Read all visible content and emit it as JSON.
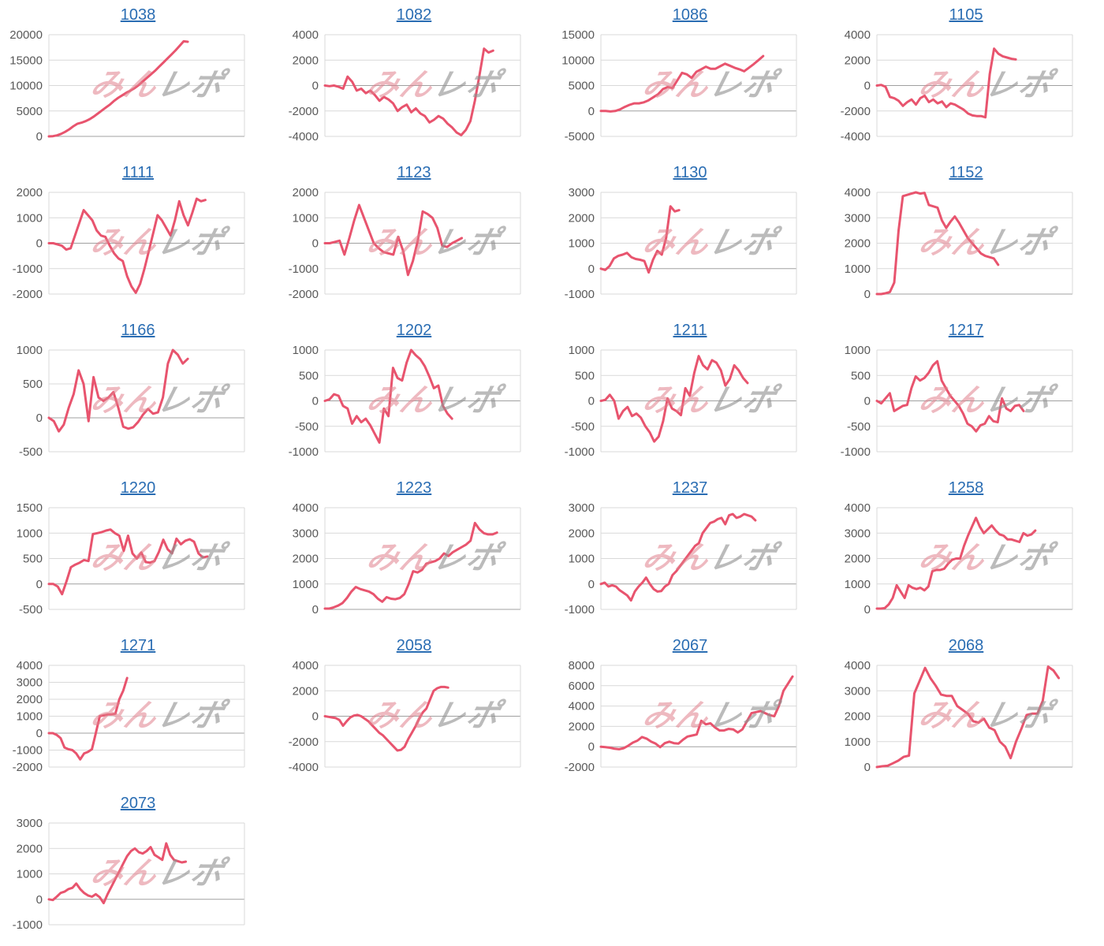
{
  "page": {
    "background": "#ffffff"
  },
  "watermark": {
    "left_text": "みん",
    "right_text": "レポ",
    "left_color": "rgba(224,128,140,0.55)",
    "right_color": "rgba(145,145,145,0.62)"
  },
  "chart_style": {
    "line_color": "#e8546e",
    "grid_color": "#d9d9d9",
    "zero_line_color": "#a0a0a0",
    "tick_color": "#595959",
    "title_color": "#2a6db3"
  },
  "chart_data": [
    {
      "type": "line",
      "title": "1038",
      "ylim": [
        0,
        20000
      ],
      "ystep": 5000,
      "span": 0.71,
      "values": [
        0,
        50,
        200,
        500,
        900,
        1400,
        2000,
        2500,
        2700,
        3000,
        3400,
        3900,
        4500,
        5100,
        5700,
        6300,
        7000,
        7600,
        8100,
        8600,
        9000,
        9500,
        10100,
        10800,
        11500,
        12200,
        12900,
        13700,
        14500,
        15300,
        16100,
        16900,
        17800,
        18700,
        18600
      ]
    },
    {
      "type": "line",
      "title": "1082",
      "ylim": [
        -4000,
        4000
      ],
      "ystep": 2000,
      "span": 0.86,
      "values": [
        0,
        -50,
        0,
        -100,
        -250,
        700,
        300,
        -400,
        -250,
        -600,
        -400,
        -750,
        -1200,
        -900,
        -1100,
        -1400,
        -2000,
        -1700,
        -1500,
        -2100,
        -1800,
        -2200,
        -2400,
        -2900,
        -2700,
        -2400,
        -2600,
        -3000,
        -3300,
        -3700,
        -3900,
        -3500,
        -2800,
        -1200,
        800,
        2900,
        2600,
        2750
      ]
    },
    {
      "type": "line",
      "title": "1086",
      "ylim": [
        -5000,
        15000
      ],
      "ystep": 5000,
      "span": 0.83,
      "values": [
        0,
        0,
        -100,
        0,
        300,
        800,
        1200,
        1500,
        1500,
        1700,
        2100,
        2700,
        3300,
        4300,
        4700,
        4500,
        6000,
        7500,
        7200,
        6500,
        7700,
        8200,
        8700,
        8300,
        8300,
        8800,
        9300,
        8900,
        8500,
        8200,
        7800,
        8500,
        9200,
        10000,
        10800
      ]
    },
    {
      "type": "line",
      "title": "1105",
      "ylim": [
        -4000,
        4000
      ],
      "ystep": 2000,
      "span": 0.71,
      "values": [
        0,
        50,
        -100,
        -900,
        -1000,
        -1200,
        -1600,
        -1300,
        -1100,
        -1500,
        -1000,
        -800,
        -1300,
        -1100,
        -1400,
        -1250,
        -1700,
        -1400,
        -1500,
        -1700,
        -1900,
        -2200,
        -2350,
        -2400,
        -2400,
        -2500,
        900,
        2900,
        2500,
        2300,
        2200,
        2100,
        2050
      ]
    },
    {
      "type": "line",
      "title": "1111",
      "ylim": [
        -2000,
        2000
      ],
      "ystep": 1000,
      "span": 0.8,
      "values": [
        0,
        0,
        -50,
        -100,
        -250,
        -200,
        300,
        800,
        1300,
        1100,
        900,
        500,
        300,
        250,
        -100,
        -400,
        -600,
        -700,
        -1300,
        -1700,
        -1950,
        -1600,
        -1000,
        -300,
        400,
        1100,
        900,
        600,
        300,
        900,
        1650,
        1100,
        700,
        1200,
        1750,
        1650,
        1700
      ]
    },
    {
      "type": "line",
      "title": "1123",
      "ylim": [
        -2000,
        2000
      ],
      "ystep": 1000,
      "span": 0.7,
      "values": [
        0,
        0,
        50,
        100,
        -450,
        200,
        900,
        1500,
        1000,
        500,
        0,
        -200,
        -350,
        -400,
        -450,
        250,
        -300,
        -1250,
        -700,
        100,
        1250,
        1150,
        1000,
        600,
        -100,
        -150,
        0,
        100,
        200
      ]
    },
    {
      "type": "line",
      "title": "1130",
      "ylim": [
        -1000,
        3000
      ],
      "ystep": 1000,
      "span": 0.4,
      "values": [
        0,
        -50,
        100,
        400,
        500,
        550,
        620,
        450,
        380,
        350,
        300,
        -150,
        350,
        700,
        550,
        1200,
        2450,
        2250,
        2300
      ]
    },
    {
      "type": "line",
      "title": "1152",
      "ylim": [
        0,
        4000
      ],
      "ystep": 1000,
      "span": 0.62,
      "values": [
        0,
        0,
        30,
        80,
        450,
        2500,
        3850,
        3900,
        3950,
        4000,
        3950,
        3980,
        3500,
        3450,
        3400,
        2900,
        2600,
        2850,
        3050,
        2800,
        2500,
        2200,
        2000,
        1800,
        1600,
        1500,
        1450,
        1400,
        1150
      ]
    },
    {
      "type": "line",
      "title": "1166",
      "ylim": [
        -500,
        1000
      ],
      "ystep": 500,
      "span": 0.71,
      "values": [
        0,
        -50,
        -200,
        -100,
        150,
        350,
        700,
        500,
        -50,
        600,
        300,
        250,
        300,
        380,
        150,
        -130,
        -160,
        -140,
        -60,
        50,
        130,
        60,
        80,
        300,
        800,
        1000,
        930,
        800,
        870
      ]
    },
    {
      "type": "line",
      "title": "1202",
      "ylim": [
        -1000,
        1000
      ],
      "ystep": 500,
      "span": 0.65,
      "values": [
        0,
        30,
        130,
        100,
        -100,
        -150,
        -450,
        -300,
        -420,
        -350,
        -480,
        -650,
        -820,
        -150,
        -300,
        650,
        450,
        400,
        750,
        1000,
        900,
        820,
        680,
        480,
        250,
        300,
        -100,
        -250,
        -350
      ]
    },
    {
      "type": "line",
      "title": "1211",
      "ylim": [
        -1000,
        1000
      ],
      "ystep": 500,
      "span": 0.75,
      "values": [
        0,
        20,
        120,
        0,
        -350,
        -200,
        -120,
        -300,
        -250,
        -330,
        -500,
        -620,
        -800,
        -700,
        -400,
        50,
        -150,
        -200,
        -280,
        250,
        100,
        550,
        880,
        700,
        620,
        800,
        750,
        600,
        300,
        430,
        700,
        600,
        450,
        350
      ]
    },
    {
      "type": "line",
      "title": "1217",
      "ylim": [
        -1000,
        1000
      ],
      "ystep": 500,
      "span": 0.75,
      "values": [
        0,
        -50,
        50,
        150,
        -200,
        -150,
        -100,
        -80,
        250,
        480,
        400,
        450,
        550,
        700,
        780,
        400,
        250,
        100,
        0,
        -100,
        -250,
        -450,
        -500,
        -600,
        -480,
        -450,
        -300,
        -400,
        -420,
        50,
        -150,
        -200,
        -100,
        -80,
        -200
      ]
    },
    {
      "type": "line",
      "title": "1220",
      "ylim": [
        -500,
        1500
      ],
      "ystep": 500,
      "span": 0.81,
      "values": [
        0,
        0,
        -50,
        -200,
        50,
        330,
        380,
        420,
        470,
        450,
        980,
        1000,
        1020,
        1050,
        1070,
        1000,
        950,
        650,
        950,
        600,
        500,
        620,
        430,
        420,
        450,
        630,
        870,
        680,
        600,
        890,
        780,
        850,
        880,
        830,
        600,
        520,
        540
      ]
    },
    {
      "type": "line",
      "title": "1223",
      "ylim": [
        0,
        4000
      ],
      "ystep": 1000,
      "span": 0.88,
      "values": [
        30,
        30,
        80,
        150,
        250,
        450,
        700,
        880,
        800,
        750,
        700,
        600,
        420,
        300,
        480,
        420,
        400,
        450,
        600,
        1000,
        1500,
        1450,
        1550,
        1800,
        1850,
        1900,
        2000,
        2200,
        2100,
        2250,
        2350,
        2450,
        2550,
        2700,
        3400,
        3150,
        3000,
        2950,
        2950,
        3020
      ]
    },
    {
      "type": "line",
      "title": "1237",
      "ylim": [
        -1000,
        3000
      ],
      "ystep": 1000,
      "span": 0.79,
      "values": [
        0,
        50,
        -100,
        -50,
        -100,
        -250,
        -350,
        -450,
        -650,
        -300,
        -100,
        50,
        250,
        0,
        -200,
        -300,
        -280,
        -100,
        0,
        350,
        500,
        700,
        900,
        1100,
        1300,
        1500,
        1600,
        2000,
        2200,
        2400,
        2450,
        2550,
        2600,
        2350,
        2700,
        2750,
        2600,
        2650,
        2750,
        2700,
        2650,
        2500
      ]
    },
    {
      "type": "line",
      "title": "1258",
      "ylim": [
        0,
        4000
      ],
      "ystep": 1000,
      "span": 0.81,
      "values": [
        30,
        30,
        50,
        200,
        450,
        950,
        700,
        450,
        950,
        850,
        800,
        850,
        750,
        900,
        1500,
        1550,
        1550,
        1600,
        1800,
        1950,
        2000,
        2000,
        2500,
        2900,
        3250,
        3600,
        3250,
        3000,
        3150,
        3300,
        3100,
        2950,
        2900,
        2750,
        2750,
        2700,
        2650,
        3000,
        2900,
        2950,
        3100
      ]
    },
    {
      "type": "line",
      "title": "1271",
      "ylim": [
        -2000,
        4000
      ],
      "ystep": 1000,
      "span": 0.4,
      "values": [
        0,
        0,
        -100,
        -300,
        -850,
        -950,
        -1000,
        -1200,
        -1550,
        -1200,
        -1100,
        -950,
        0,
        1000,
        1050,
        1100,
        1100,
        1150,
        2000,
        2500,
        3250
      ]
    },
    {
      "type": "line",
      "title": "2058",
      "ylim": [
        -4000,
        4000
      ],
      "ystep": 2000,
      "span": 0.63,
      "values": [
        0,
        -50,
        -100,
        -150,
        -300,
        -750,
        -400,
        -100,
        50,
        100,
        0,
        -200,
        -400,
        -700,
        -1000,
        -1300,
        -1500,
        -1800,
        -2100,
        -2400,
        -2700,
        -2650,
        -2400,
        -1800,
        -1300,
        -800,
        -200,
        300,
        600,
        1300,
        2000,
        2200,
        2300,
        2300,
        2250
      ]
    },
    {
      "type": "line",
      "title": "2067",
      "ylim": [
        -2000,
        8000
      ],
      "ystep": 2000,
      "span": 0.98,
      "values": [
        0,
        -50,
        -100,
        -200,
        -250,
        -150,
        100,
        400,
        600,
        950,
        800,
        500,
        300,
        -50,
        350,
        500,
        350,
        300,
        700,
        1000,
        1100,
        1200,
        2550,
        2200,
        2300,
        1900,
        1600,
        1600,
        1750,
        1700,
        1400,
        1700,
        2500,
        3300,
        3400,
        3500,
        3300,
        3100,
        3000,
        4000,
        5500,
        6200,
        6900
      ]
    },
    {
      "type": "line",
      "title": "2068",
      "ylim": [
        0,
        4000
      ],
      "ystep": 1000,
      "span": 0.93,
      "values": [
        0,
        30,
        50,
        150,
        250,
        400,
        450,
        2900,
        3400,
        3900,
        3500,
        3200,
        2850,
        2800,
        2800,
        2400,
        2250,
        2100,
        1800,
        1750,
        1900,
        1550,
        1450,
        1000,
        800,
        350,
        1000,
        1500,
        2050,
        2100,
        2100,
        2600,
        3950,
        3800,
        3500
      ]
    },
    {
      "type": "line",
      "title": "2073",
      "ylim": [
        -1000,
        3000
      ],
      "ystep": 1000,
      "span": 0.7,
      "values": [
        0,
        -30,
        100,
        250,
        300,
        400,
        450,
        620,
        400,
        250,
        150,
        100,
        200,
        80,
        -150,
        200,
        500,
        800,
        1100,
        1400,
        1700,
        1900,
        2000,
        1850,
        1800,
        1900,
        2050,
        1750,
        1650,
        1550,
        2200,
        1750,
        1550,
        1500,
        1450,
        1480
      ]
    }
  ]
}
